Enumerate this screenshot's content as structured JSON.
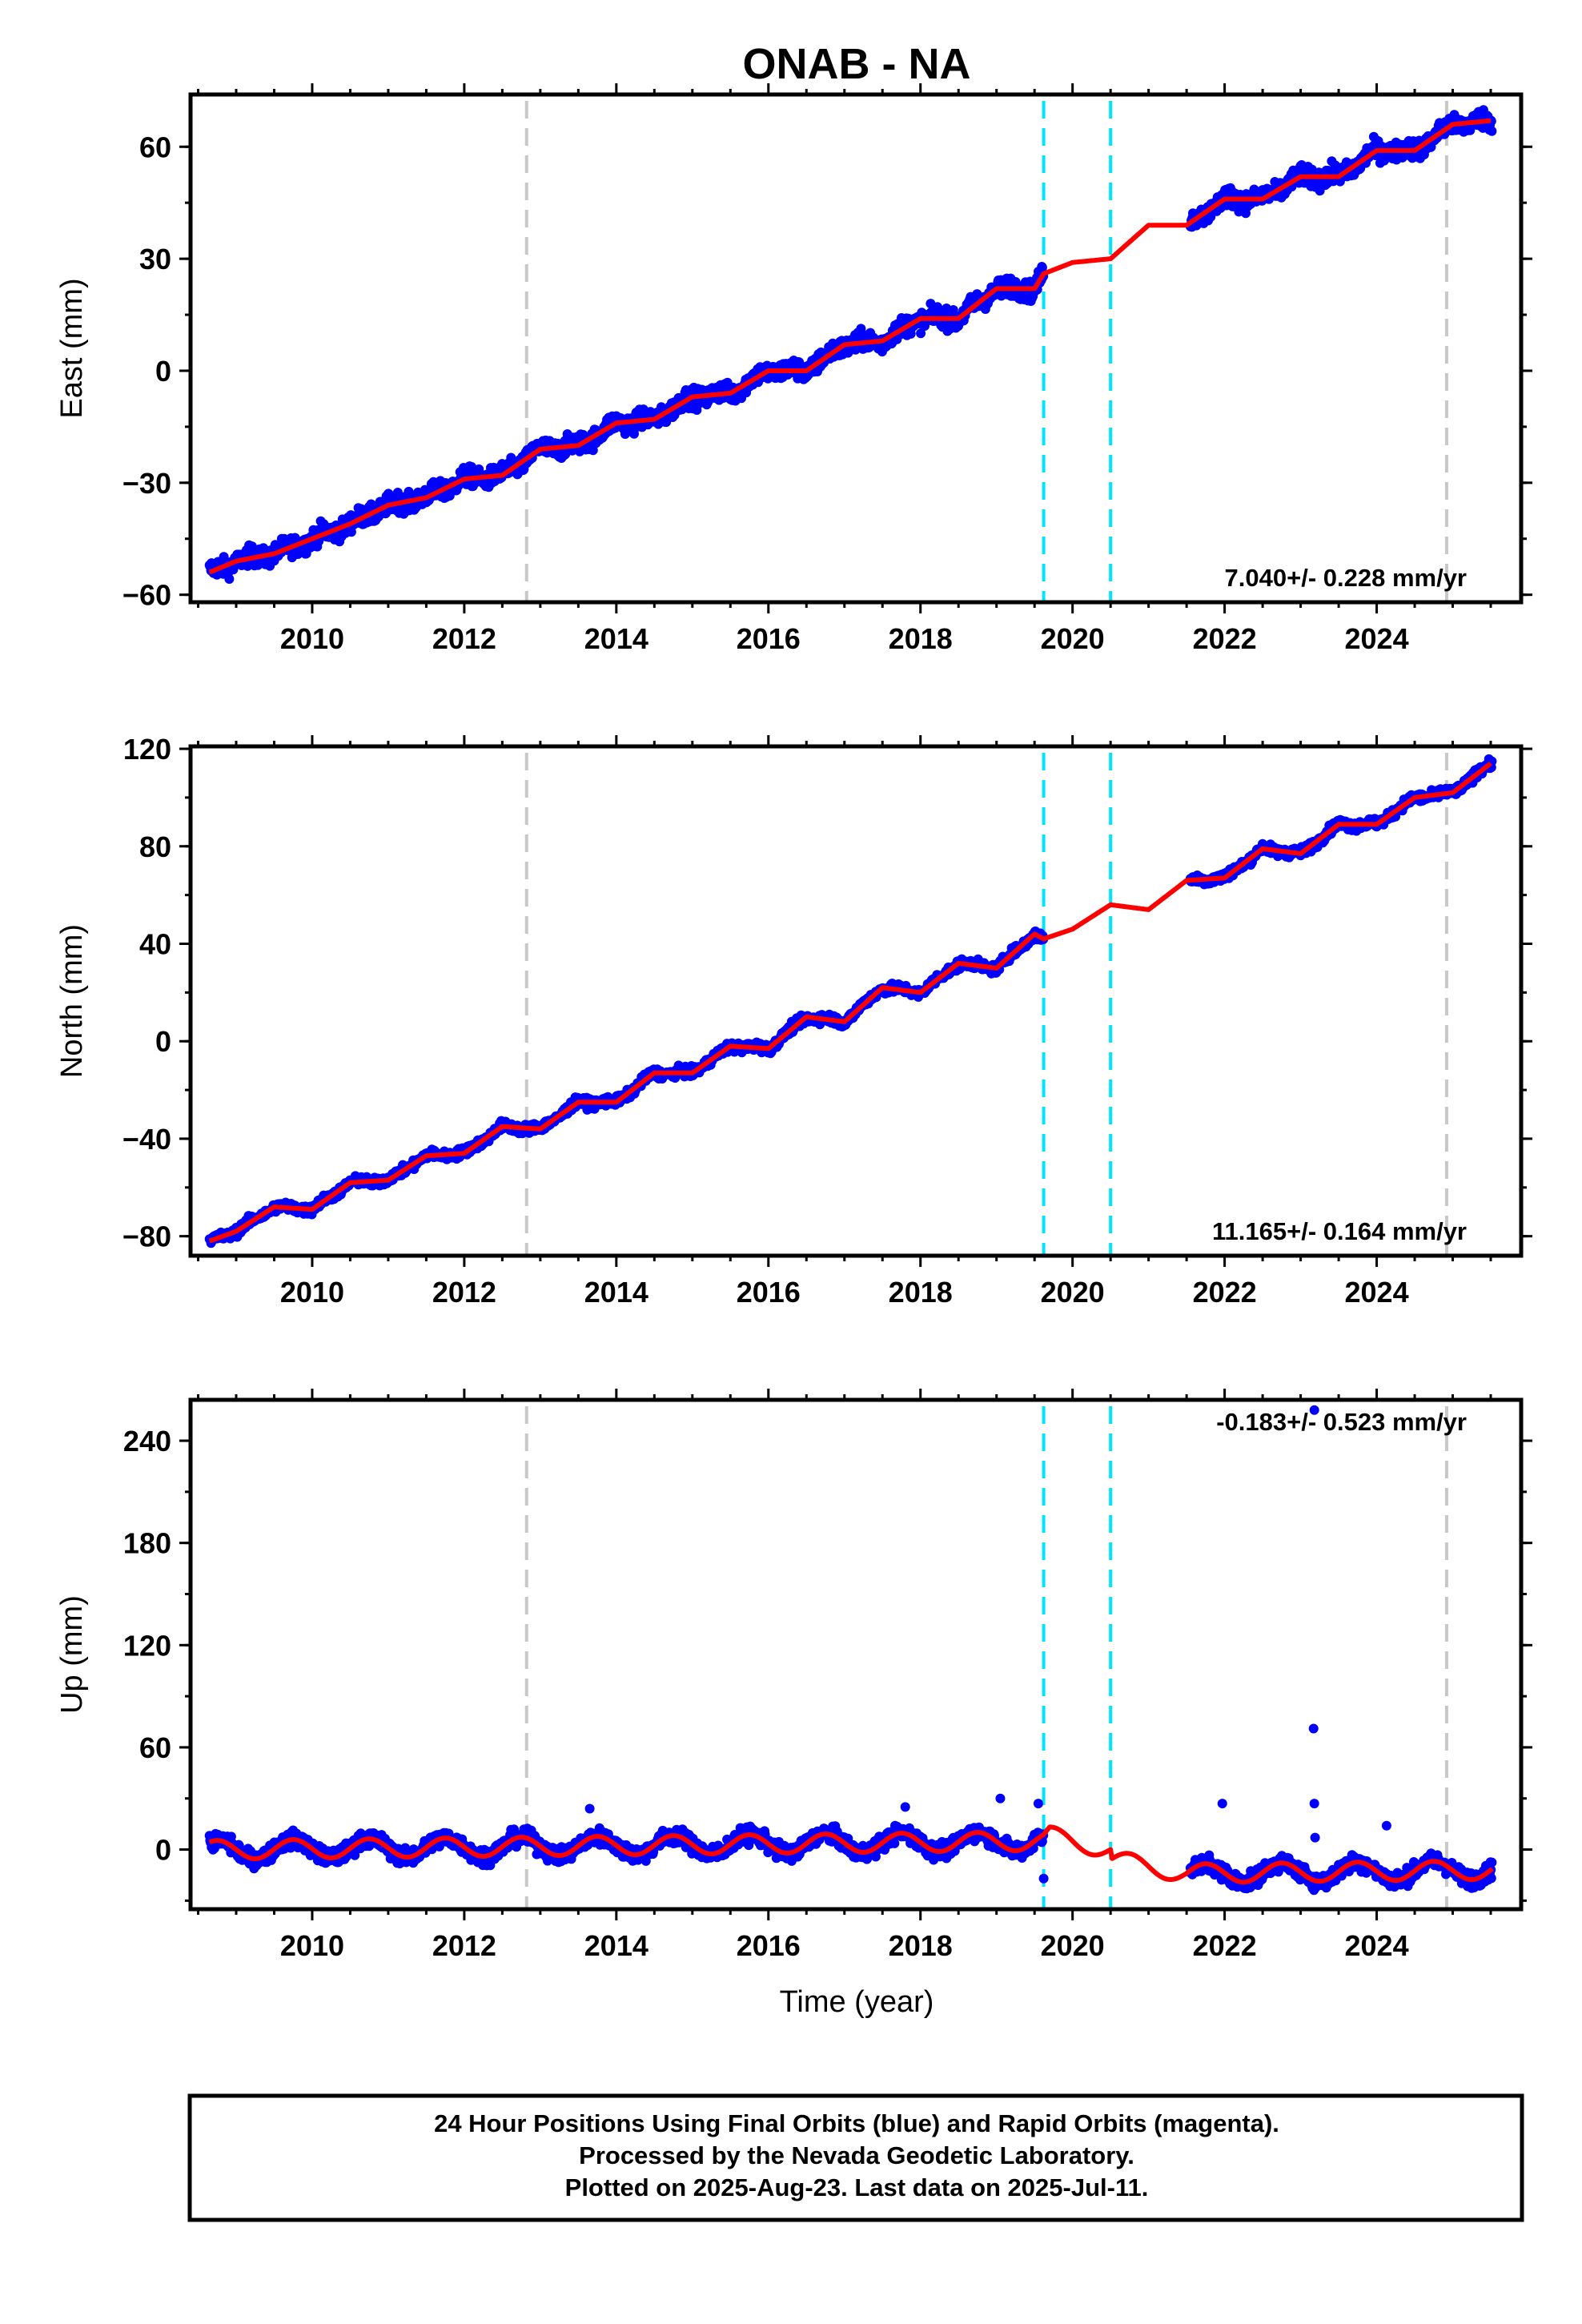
{
  "figure_title": "ONAB - NA",
  "xlabel": "Time (year)",
  "colors": {
    "data": "#0000ff",
    "model": "#ff0000",
    "equipment_change": "#c8c8c8",
    "event": "#00e5ff",
    "frame": "#000000"
  },
  "chart_data": [
    {
      "type": "scatter",
      "panel": "east",
      "ylabel": "East (mm)",
      "rate_label": "7.040+/- 0.228 mm/yr",
      "rate_position": "bottom-right",
      "xlim": [
        2008.4,
        2025.9
      ],
      "ylim": [
        -62,
        74
      ],
      "yticks": [
        -60,
        -30,
        0,
        30,
        60
      ],
      "xticks": [
        2010,
        2012,
        2014,
        2016,
        2018,
        2020,
        2022,
        2024
      ],
      "vlines_gray": [
        2012.82,
        2024.92
      ],
      "vlines_cyan": [
        2019.62,
        2020.5
      ],
      "model": {
        "x": [
          2008.65,
          2009.0,
          2009.5,
          2010.0,
          2010.5,
          2011.0,
          2011.5,
          2012.0,
          2012.5,
          2013.0,
          2013.5,
          2014.0,
          2014.5,
          2015.0,
          2015.5,
          2016.0,
          2016.5,
          2017.0,
          2017.5,
          2018.0,
          2018.5,
          2019.0,
          2019.5,
          2019.62,
          2020.0,
          2020.5,
          2021.0,
          2021.5,
          2022.0,
          2022.5,
          2023.0,
          2023.5,
          2024.0,
          2024.5,
          2025.0,
          2025.5
        ],
        "y": [
          -54,
          -51,
          -49,
          -45,
          -41,
          -36,
          -34,
          -29,
          -28,
          -21,
          -20,
          -14,
          -13,
          -7,
          -6,
          0,
          0,
          7,
          8,
          14,
          14,
          22,
          22,
          26,
          29,
          30,
          39,
          39,
          46,
          46,
          52,
          52,
          59,
          59,
          66,
          67
        ]
      },
      "observations": {
        "segments": [
          [
            2008.65,
            2019.62
          ],
          [
            2021.55,
            2025.52
          ]
        ],
        "noise_mm": 3.2,
        "annual_amplitude_mm": 2.5
      }
    },
    {
      "type": "scatter",
      "panel": "north",
      "ylabel": "North (mm)",
      "rate_label": "11.165+/- 0.164 mm/yr",
      "rate_position": "bottom-right",
      "xlim": [
        2008.4,
        2025.9
      ],
      "ylim": [
        -88,
        121
      ],
      "yticks": [
        -80,
        -40,
        0,
        40,
        80,
        120
      ],
      "xticks": [
        2010,
        2012,
        2014,
        2016,
        2018,
        2020,
        2022,
        2024
      ],
      "vlines_gray": [
        2012.82,
        2024.92
      ],
      "vlines_cyan": [
        2019.62,
        2020.5
      ],
      "model": {
        "x": [
          2008.65,
          2009.0,
          2009.5,
          2010.0,
          2010.5,
          2011.0,
          2011.5,
          2012.0,
          2012.5,
          2013.0,
          2013.5,
          2014.0,
          2014.5,
          2015.0,
          2015.5,
          2016.0,
          2016.5,
          2017.0,
          2017.5,
          2018.0,
          2018.5,
          2019.0,
          2019.5,
          2019.62,
          2020.0,
          2020.5,
          2021.0,
          2021.5,
          2022.0,
          2022.5,
          2023.0,
          2023.5,
          2024.0,
          2024.5,
          2025.0,
          2025.5
        ],
        "y": [
          -82,
          -78,
          -68,
          -69,
          -58,
          -57,
          -47,
          -46,
          -35,
          -36,
          -25,
          -25,
          -13,
          -13,
          -2,
          -3,
          10,
          8,
          22,
          20,
          32,
          30,
          44,
          42,
          46,
          56,
          54,
          66,
          67,
          79,
          77,
          89,
          89,
          100,
          102,
          114
        ]
      },
      "observations": {
        "segments": [
          [
            2008.65,
            2019.62
          ],
          [
            2021.55,
            2025.52
          ]
        ],
        "noise_mm": 2.4,
        "annual_amplitude_mm": 2.0
      }
    },
    {
      "type": "scatter",
      "panel": "up",
      "ylabel": "Up (mm)",
      "rate_label": "-0.183+/- 0.523 mm/yr",
      "rate_position": "top-right",
      "xlim": [
        2008.4,
        2025.9
      ],
      "ylim": [
        -35,
        264
      ],
      "yticks": [
        0,
        60,
        120,
        180,
        240
      ],
      "xticks": [
        2010,
        2012,
        2014,
        2016,
        2018,
        2020,
        2022,
        2024
      ],
      "vlines_gray": [
        2012.82,
        2024.92
      ],
      "vlines_cyan": [
        2019.62,
        2020.5
      ],
      "model": {
        "x": [
          2008.65,
          2019.62,
          2019.7,
          2020.5,
          2020.52,
          2021.5,
          2025.52
        ],
        "trend": [
          -0.18,
          5.0,
          8.0,
          0.0,
          -6.0,
          -14.0,
          -12.0
        ],
        "annual_amplitude_mm": 5.5
      },
      "observations": {
        "segments": [
          [
            2008.65,
            2019.62
          ],
          [
            2021.55,
            2025.52
          ]
        ],
        "noise_mm": 6.0
      },
      "outliers": [
        {
          "x": 2023.18,
          "y": 258
        },
        {
          "x": 2023.17,
          "y": 71
        },
        {
          "x": 2023.18,
          "y": 27
        },
        {
          "x": 2023.19,
          "y": 7
        },
        {
          "x": 2021.97,
          "y": 27
        },
        {
          "x": 2019.62,
          "y": -17
        },
        {
          "x": 2019.05,
          "y": 30
        },
        {
          "x": 2019.55,
          "y": 27
        },
        {
          "x": 2013.65,
          "y": 24
        },
        {
          "x": 2017.8,
          "y": 25
        },
        {
          "x": 2024.13,
          "y": 14
        }
      ]
    }
  ],
  "footer": {
    "line1": "24 Hour Positions Using Final Orbits (blue) and Rapid Orbits (magenta).",
    "line2": "Processed by the Nevada Geodetic Laboratory.",
    "line3": "Plotted on 2025-Aug-23. Last data on 2025-Jul-11."
  }
}
